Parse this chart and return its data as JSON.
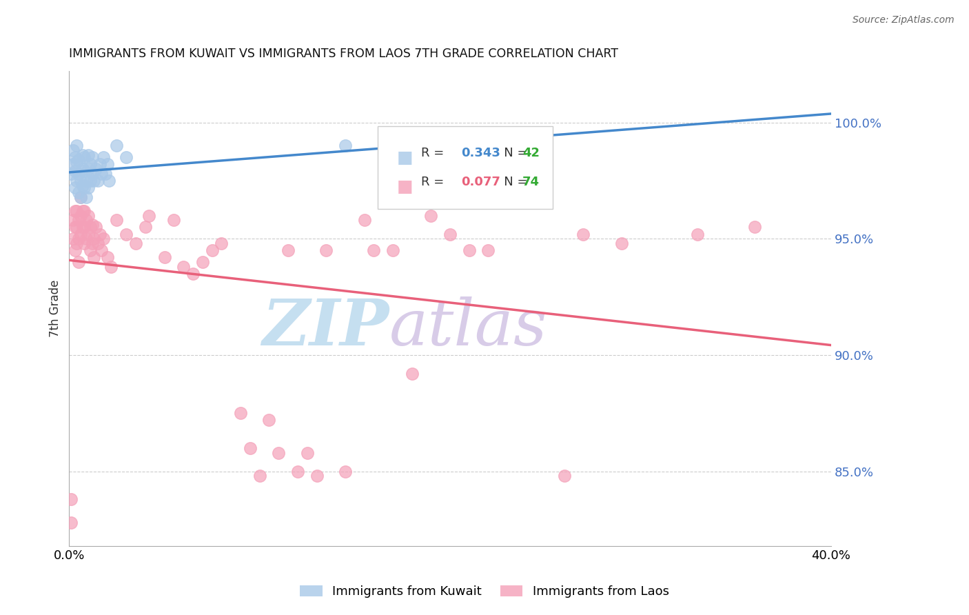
{
  "title": "IMMIGRANTS FROM KUWAIT VS IMMIGRANTS FROM LAOS 7TH GRADE CORRELATION CHART",
  "source": "Source: ZipAtlas.com",
  "ylabel": "7th Grade",
  "right_yticks": [
    "100.0%",
    "95.0%",
    "90.0%",
    "85.0%"
  ],
  "right_ytick_vals": [
    1.0,
    0.95,
    0.9,
    0.85
  ],
  "xlim": [
    0.0,
    0.4
  ],
  "ylim": [
    0.818,
    1.022
  ],
  "kuwait_R": 0.343,
  "kuwait_N": 42,
  "laos_R": 0.077,
  "laos_N": 74,
  "kuwait_color": "#a8c8e8",
  "laos_color": "#f4a0b8",
  "trendline_kuwait_color": "#4488cc",
  "trendline_laos_color": "#e8607a",
  "watermark_zip_color": "#c8dff0",
  "watermark_atlas_color": "#d8c8e0",
  "kuwait_x": [
    0.001,
    0.002,
    0.002,
    0.003,
    0.003,
    0.003,
    0.004,
    0.004,
    0.004,
    0.005,
    0.005,
    0.005,
    0.006,
    0.006,
    0.007,
    0.007,
    0.007,
    0.008,
    0.008,
    0.008,
    0.009,
    0.009,
    0.01,
    0.01,
    0.01,
    0.011,
    0.011,
    0.012,
    0.012,
    0.013,
    0.014,
    0.015,
    0.016,
    0.017,
    0.018,
    0.019,
    0.02,
    0.021,
    0.025,
    0.03,
    0.145,
    0.19
  ],
  "kuwait_y": [
    0.978,
    0.982,
    0.988,
    0.972,
    0.979,
    0.985,
    0.975,
    0.983,
    0.99,
    0.97,
    0.978,
    0.984,
    0.968,
    0.975,
    0.98,
    0.973,
    0.986,
    0.972,
    0.979,
    0.985,
    0.968,
    0.975,
    0.972,
    0.98,
    0.986,
    0.975,
    0.982,
    0.978,
    0.985,
    0.975,
    0.98,
    0.975,
    0.982,
    0.978,
    0.985,
    0.978,
    0.982,
    0.975,
    0.99,
    0.985,
    0.99,
    0.988
  ],
  "laos_x": [
    0.001,
    0.001,
    0.002,
    0.002,
    0.003,
    0.003,
    0.003,
    0.004,
    0.004,
    0.004,
    0.005,
    0.005,
    0.005,
    0.006,
    0.006,
    0.006,
    0.007,
    0.007,
    0.008,
    0.008,
    0.008,
    0.009,
    0.009,
    0.01,
    0.01,
    0.011,
    0.011,
    0.012,
    0.012,
    0.013,
    0.013,
    0.014,
    0.015,
    0.016,
    0.017,
    0.018,
    0.02,
    0.022,
    0.025,
    0.03,
    0.035,
    0.04,
    0.042,
    0.05,
    0.055,
    0.06,
    0.065,
    0.07,
    0.075,
    0.08,
    0.09,
    0.095,
    0.1,
    0.105,
    0.11,
    0.115,
    0.12,
    0.125,
    0.13,
    0.135,
    0.145,
    0.155,
    0.16,
    0.17,
    0.18,
    0.19,
    0.2,
    0.21,
    0.22,
    0.26,
    0.27,
    0.29,
    0.33,
    0.36
  ],
  "laos_y": [
    0.838,
    0.828,
    0.95,
    0.958,
    0.945,
    0.955,
    0.962,
    0.948,
    0.955,
    0.962,
    0.94,
    0.95,
    0.958,
    0.952,
    0.96,
    0.968,
    0.955,
    0.962,
    0.948,
    0.955,
    0.962,
    0.95,
    0.958,
    0.952,
    0.96,
    0.945,
    0.955,
    0.948,
    0.956,
    0.942,
    0.95,
    0.955,
    0.948,
    0.952,
    0.945,
    0.95,
    0.942,
    0.938,
    0.958,
    0.952,
    0.948,
    0.955,
    0.96,
    0.942,
    0.958,
    0.938,
    0.935,
    0.94,
    0.945,
    0.948,
    0.875,
    0.86,
    0.848,
    0.872,
    0.858,
    0.945,
    0.85,
    0.858,
    0.848,
    0.945,
    0.85,
    0.958,
    0.945,
    0.945,
    0.892,
    0.96,
    0.952,
    0.945,
    0.945,
    0.848,
    0.952,
    0.948,
    0.952,
    0.955
  ]
}
